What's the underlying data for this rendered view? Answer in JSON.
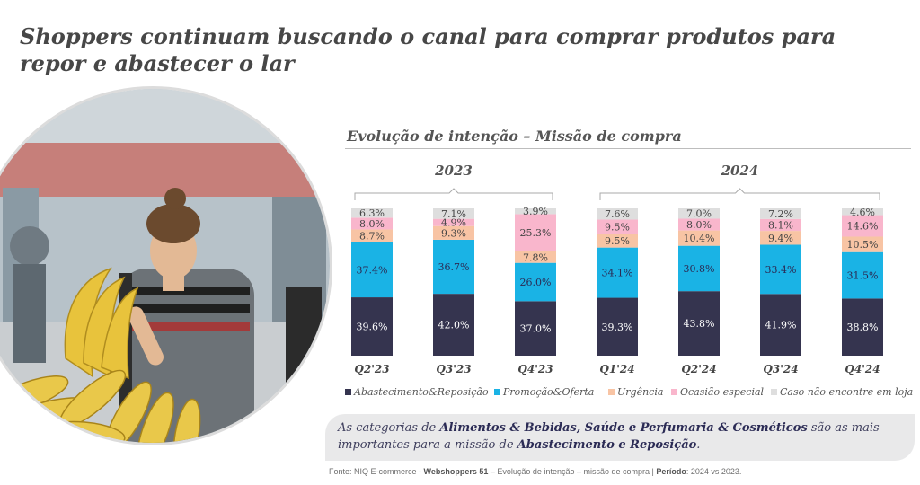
{
  "page": {
    "title": "Shoppers continuam buscando o canal para comprar produtos para repor e abastecer o lar",
    "chart_subtitle": "Evolução de intenção – Missão de compra",
    "callout": {
      "p1": "As categorias de ",
      "b1": "Alimentos & Bebidas, Saúde e Perfumaria & Cosméticos",
      "p2": " são as mais importantes para a missão de ",
      "b2": "Abastecimento e Reposição",
      "p3": "."
    },
    "source": {
      "p1": "Fonte: NIQ E-commerce - ",
      "b1": "Webshoppers 51",
      "p2": " – Evolução de intenção – missão de compra | ",
      "b2": "Período",
      "p3": ": 2024 vs 2023."
    }
  },
  "chart_data": {
    "type": "bar",
    "stacked": true,
    "normalized": true,
    "title": "Evolução de intenção – Missão de compra",
    "categories": [
      "Q2'23",
      "Q3'23",
      "Q4'23",
      "Q1'24",
      "Q2'24",
      "Q3'24",
      "Q4'24"
    ],
    "groups": [
      {
        "label": "2023",
        "categories": [
          "Q2'23",
          "Q3'23",
          "Q4'23"
        ]
      },
      {
        "label": "2024",
        "categories": [
          "Q1'24",
          "Q2'24",
          "Q3'24",
          "Q4'24"
        ]
      }
    ],
    "series": [
      {
        "name": "Abastecimento&Reposição",
        "color": "#35344f",
        "values": [
          39.6,
          42.0,
          37.0,
          39.3,
          43.8,
          41.9,
          38.8
        ],
        "labels": [
          "39.6%",
          "42.0%",
          "37.0%",
          "39.3%",
          "43.8%",
          "41.9%",
          "38.8%"
        ]
      },
      {
        "name": "Promoção&Oferta",
        "color": "#1ab3e5",
        "values": [
          37.4,
          36.7,
          26.0,
          34.1,
          30.8,
          33.4,
          31.5
        ],
        "labels": [
          "37.4%",
          "36.7%",
          "26.0%",
          "34.1%",
          "30.8%",
          "33.4%",
          "31.5%"
        ]
      },
      {
        "name": "Urgência",
        "color": "#f8c4a4",
        "values": [
          8.7,
          9.3,
          7.8,
          9.5,
          10.4,
          9.4,
          10.5
        ],
        "labels": [
          "8.7%",
          "9.3%",
          "7.8%",
          "9.5%",
          "10.4%",
          "9.4%",
          "10.5%"
        ]
      },
      {
        "name": "Ocasião especial",
        "color": "#f9b6cc",
        "values": [
          8.0,
          4.9,
          25.3,
          9.5,
          8.0,
          8.1,
          14.6
        ],
        "labels": [
          "8.0%",
          "4.9%",
          "25.3%",
          "9.5%",
          "8.0%",
          "8.1%",
          "14.6%"
        ]
      },
      {
        "name": "Caso não encontre em loja",
        "color": "#dedede",
        "values": [
          6.3,
          7.1,
          3.9,
          7.6,
          7.0,
          7.2,
          4.6
        ],
        "labels": [
          "6.3%",
          "7.1%",
          "3.9%",
          "7.6%",
          "7.0%",
          "7.2%",
          "4.6%"
        ]
      }
    ],
    "legend_position": "bottom",
    "grid": false
  }
}
